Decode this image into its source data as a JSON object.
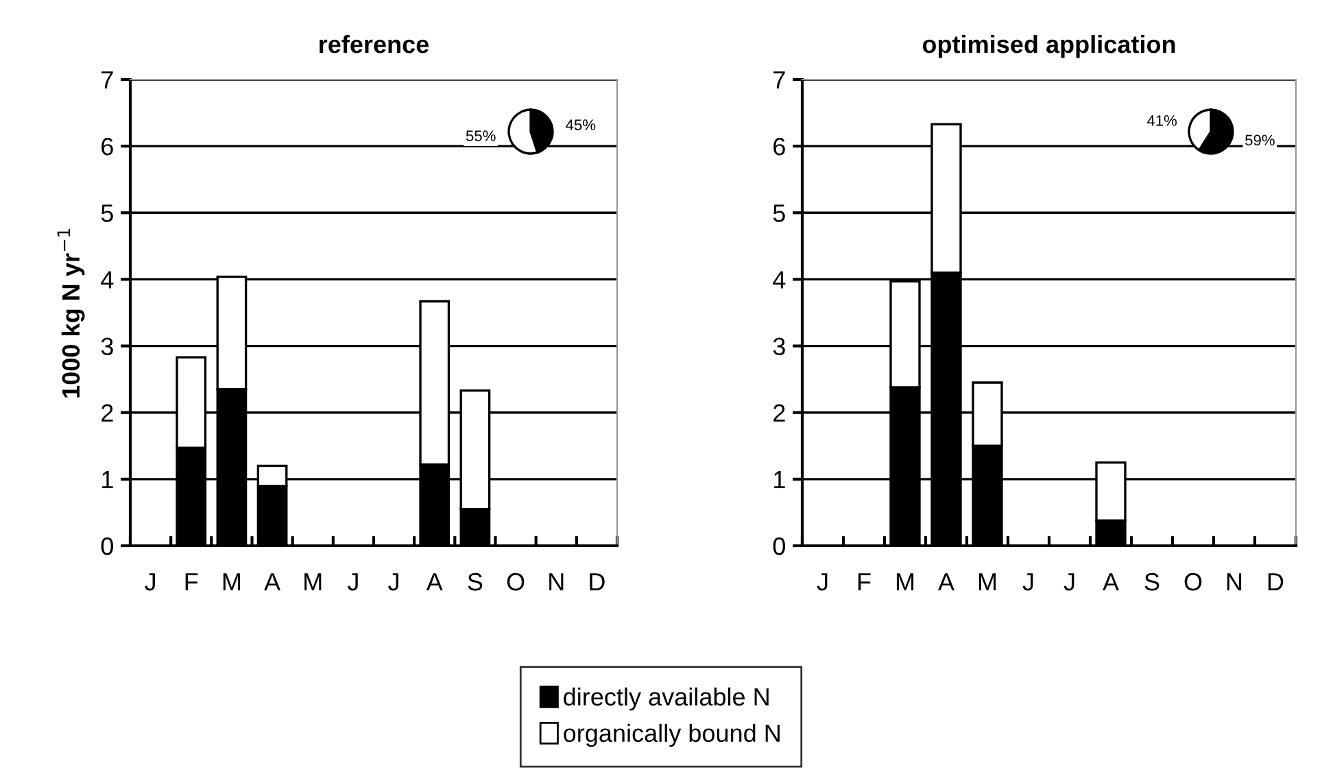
{
  "chart_data": [
    {
      "type": "bar",
      "title": "reference",
      "ylabel": "1000 kg N yr$^{−1}$",
      "categories": [
        "J",
        "F",
        "M",
        "A",
        "M",
        "J",
        "J",
        "A",
        "S",
        "O",
        "N",
        "D"
      ],
      "stacked": true,
      "ylim": [
        0,
        7
      ],
      "yticks": [
        0,
        1,
        2,
        3,
        4,
        5,
        6,
        7
      ],
      "grid": "y",
      "legend": "bottom",
      "series": [
        {
          "name": "directly available N",
          "color": "#000000",
          "values": [
            0,
            1.47,
            2.35,
            0.9,
            0,
            0,
            0,
            1.22,
            0.55,
            0,
            0,
            0
          ]
        },
        {
          "name": "organically bound N",
          "color": "#ffffff",
          "values": [
            0,
            1.36,
            1.69,
            0.3,
            0,
            0,
            0,
            2.45,
            1.78,
            0,
            0,
            0
          ]
        }
      ]
    },
    {
      "type": "pie",
      "categories": [
        null,
        null
      ],
      "values": [
        45,
        55
      ],
      "colors": [
        "#000000",
        "#ffffff"
      ],
      "value_labels": [
        "45%",
        "55%"
      ]
    },
    {
      "type": "bar",
      "title": "optimised application",
      "categories": [
        "J",
        "F",
        "M",
        "A",
        "M",
        "J",
        "J",
        "A",
        "S",
        "O",
        "N",
        "D"
      ],
      "stacked": true,
      "ylim": [
        0,
        7
      ],
      "yticks": [
        0,
        1,
        2,
        3,
        4,
        5,
        6,
        7
      ],
      "grid": "y",
      "legend": "bottom",
      "series": [
        {
          "name": "directly available N",
          "color": "#000000",
          "values": [
            0,
            0,
            2.38,
            4.1,
            1.5,
            0,
            0,
            0.38,
            0,
            0,
            0,
            0
          ]
        },
        {
          "name": "organically bound N",
          "color": "#ffffff",
          "values": [
            0,
            0,
            1.59,
            2.23,
            0.95,
            0,
            0,
            0.87,
            0,
            0,
            0,
            0
          ]
        }
      ]
    },
    {
      "type": "pie",
      "categories": [
        null,
        null
      ],
      "values": [
        59,
        41
      ],
      "colors": [
        "#000000",
        "#ffffff"
      ],
      "value_labels": [
        "59%",
        "41%"
      ]
    }
  ]
}
